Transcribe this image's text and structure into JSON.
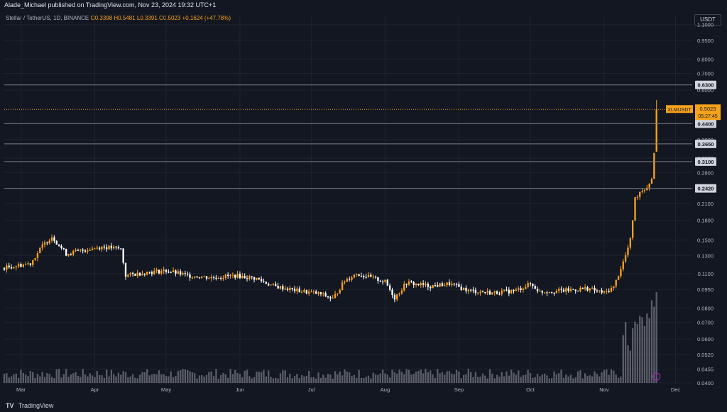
{
  "header": {
    "publish_line": "Alade_Michael published on TradingView.com, Nov 23, 2024 19:32 UTC+1",
    "symbol": "Stellar / TetherUS, 1D, BINANCE",
    "open": "O0.3398",
    "high": "H0.5481",
    "low": "L0.3391",
    "close": "C0.5023",
    "change": "+0.1624 (+47.78%)"
  },
  "currency": "USDT",
  "footer": {
    "brand": "TradingView"
  },
  "colors": {
    "background": "#131722",
    "up": "#f7a21b",
    "down": "#ffffff",
    "level_line": "#787b86",
    "price_line": "#f7a21b",
    "volume": "#9598a1"
  },
  "chart_data": {
    "type": "candlestick",
    "title": "",
    "symbol": "XLMUSDT",
    "y_scale": "log",
    "ylim": [
      0.04,
      1.12
    ],
    "y_ticks": [
      "1.1000",
      "0.9500",
      "0.8000",
      "0.7000",
      "0.6000",
      "0.3800",
      "0.3200",
      "0.2800",
      "0.2100",
      "0.1800",
      "0.1500",
      "0.1300",
      "0.1100",
      "0.0950",
      "0.0800",
      "0.0700",
      "0.0600",
      "0.0520",
      "0.0455",
      "0.0400"
    ],
    "x_labels": [
      "Mar",
      "Apr",
      "May",
      "Jun",
      "Jul",
      "Aug",
      "Sep",
      "Oct",
      "Nov",
      "Dec"
    ],
    "horizontal_levels": [
      "0.6300",
      "0.4400",
      "0.3650",
      "0.3100",
      "0.2420"
    ],
    "last_price": {
      "label": "XLMUSDT",
      "value": "0.5023",
      "countdown": "05:27:45"
    },
    "ohlc_last": {
      "open": 0.3398,
      "high": 0.5481,
      "low": 0.3391,
      "close": 0.5023
    },
    "price_path": [
      [
        "Feb 23",
        0.116
      ],
      [
        "Mar 5",
        0.121
      ],
      [
        "Mar 10",
        0.142
      ],
      [
        "Mar 14",
        0.155
      ],
      [
        "Mar 20",
        0.132
      ],
      [
        "Mar 28",
        0.137
      ],
      [
        "Apr 4",
        0.141
      ],
      [
        "Apr 12",
        0.138
      ],
      [
        "Apr 14",
        0.108
      ],
      [
        "Apr 22",
        0.111
      ],
      [
        "May 1",
        0.113
      ],
      [
        "May 10",
        0.108
      ],
      [
        "May 20",
        0.106
      ],
      [
        "May 30",
        0.108
      ],
      [
        "Jun 8",
        0.105
      ],
      [
        "Jun 15",
        0.098
      ],
      [
        "Jun 25",
        0.094
      ],
      [
        "Jul 5",
        0.091
      ],
      [
        "Jul 10",
        0.087
      ],
      [
        "Jul 15",
        0.103
      ],
      [
        "Jul 20",
        0.11
      ],
      [
        "Aug 1",
        0.102
      ],
      [
        "Aug 5",
        0.088
      ],
      [
        "Aug 10",
        0.101
      ],
      [
        "Aug 20",
        0.098
      ],
      [
        "Aug 28",
        0.1
      ],
      [
        "Sep 5",
        0.094
      ],
      [
        "Sep 15",
        0.092
      ],
      [
        "Sep 25",
        0.094
      ],
      [
        "Oct 1",
        0.1
      ],
      [
        "Oct 5",
        0.093
      ],
      [
        "Oct 15",
        0.094
      ],
      [
        "Oct 25",
        0.096
      ],
      [
        "Nov 1",
        0.092
      ],
      [
        "Nov 5",
        0.097
      ],
      [
        "Nov 10",
        0.13
      ],
      [
        "Nov 12",
        0.15
      ],
      [
        "Nov 14",
        0.22
      ],
      [
        "Nov 16",
        0.235
      ],
      [
        "Nov 19",
        0.245
      ],
      [
        "Nov 21",
        0.265
      ],
      [
        "Nov 22",
        0.34
      ],
      [
        "Nov 23",
        0.5023
      ]
    ]
  }
}
